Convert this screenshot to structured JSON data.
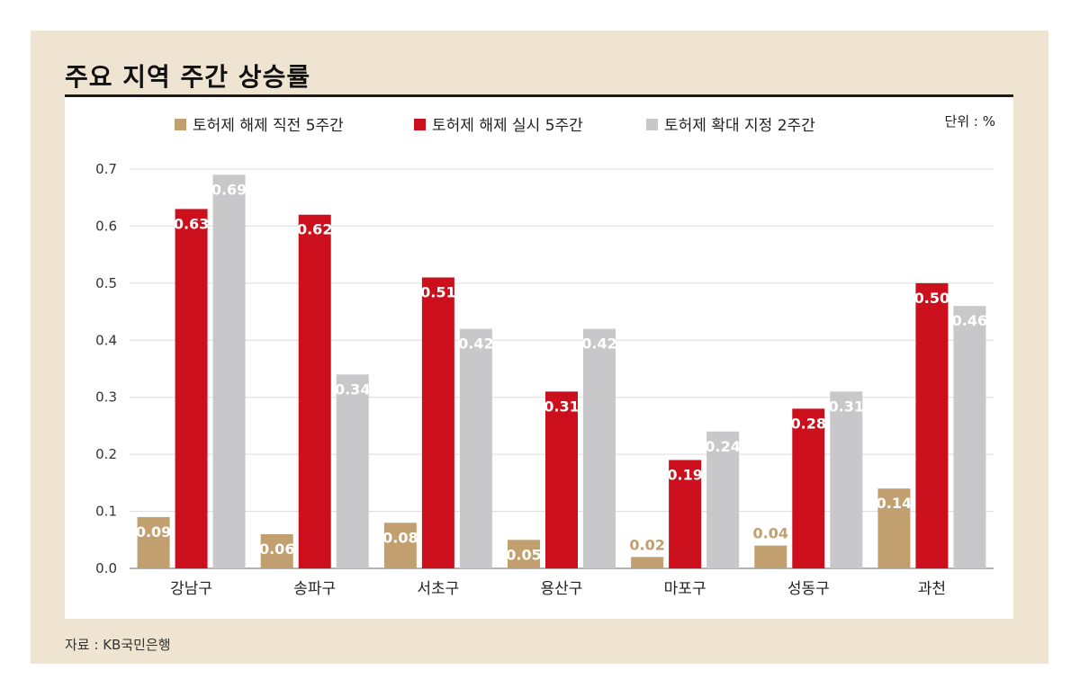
{
  "title": "주요 지역 주간 상승률",
  "unit_label": "단위 : %",
  "source": "자료 : KB국민은행",
  "chart_data": {
    "type": "bar",
    "title": "주요 지역 주간 상승률",
    "xlabel": "",
    "ylabel": "",
    "ylim": [
      0,
      0.7
    ],
    "yticks": [
      "0.0",
      "0.1",
      "0.2",
      "0.3",
      "0.4",
      "0.5",
      "0.6",
      "0.7"
    ],
    "grid": true,
    "legend": "top",
    "categories": [
      "강남구",
      "송파구",
      "서초구",
      "용산구",
      "마포구",
      "성동구",
      "과천"
    ],
    "series": [
      {
        "name": "토허제 해제 직전 5주간",
        "color": "#c29f6e",
        "label_color": "#ffffff",
        "values": [
          0.09,
          0.06,
          0.08,
          0.05,
          0.02,
          0.04,
          0.14
        ],
        "labels": [
          "0.09",
          "0.06",
          "0.08",
          "0.05",
          "0.02",
          "0.04",
          "0.14"
        ]
      },
      {
        "name": "토허제 해제 실시 5주간",
        "color": "#cc0f1d",
        "label_color": "#ffffff",
        "values": [
          0.63,
          0.62,
          0.51,
          0.31,
          0.19,
          0.28,
          0.5
        ],
        "labels": [
          "0.63",
          "0.62",
          "0.51",
          "0.31",
          "0.19",
          "0.28",
          "0.50"
        ]
      },
      {
        "name": "토허제 확대 지정 2주간",
        "color": "#c8c8cb",
        "label_color": "#ffffff",
        "values": [
          0.69,
          0.34,
          0.42,
          0.42,
          0.24,
          0.31,
          0.46
        ],
        "labels": [
          "0.69",
          "0.34",
          "0.42",
          "0.42",
          "0.24",
          "0.31",
          "0.46"
        ]
      }
    ]
  }
}
